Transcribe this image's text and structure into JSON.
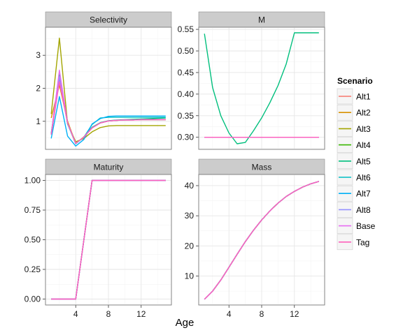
{
  "chart_data": {
    "type": "line",
    "xlabel": "Age",
    "x_ticks": [
      4,
      8,
      12
    ],
    "legend": {
      "title": "Scenario",
      "position": "right",
      "entries": [
        "Alt1",
        "Alt2",
        "Alt3",
        "Alt4",
        "Alt5",
        "Alt6",
        "Alt7",
        "Alt8",
        "Base",
        "Tag"
      ]
    },
    "colors": {
      "Alt1": "#f8766d",
      "Alt2": "#d89000",
      "Alt3": "#a3a500",
      "Alt4": "#39b600",
      "Alt5": "#00bf7d",
      "Alt6": "#00bfc4",
      "Alt7": "#00b0f6",
      "Alt8": "#9590ff",
      "Base": "#e76bf3",
      "Tag": "#ff62bc"
    },
    "x": [
      1,
      2,
      3,
      4,
      5,
      6,
      7,
      8,
      9,
      10,
      11,
      12,
      13,
      14,
      15
    ],
    "panels": [
      {
        "title": "Selectivity",
        "xlim": [
          0.3,
          15.7
        ],
        "ylim": [
          0.15,
          3.85
        ],
        "y_ticks": [
          1,
          2,
          3
        ],
        "y_tick_labels": [
          "1",
          "2",
          "3"
        ],
        "series": [
          {
            "name": "Alt1",
            "values": [
              0.6,
              2.25,
              0.95,
              0.33,
              0.52,
              0.8,
              0.95,
              1.01,
              1.03,
              1.04,
              1.04,
              1.05,
              1.05,
              1.05,
              1.05
            ]
          },
          {
            "name": "Alt2",
            "values": [
              1.1,
              2.1,
              1.0,
              0.33,
              0.53,
              0.8,
              0.95,
              1.01,
              1.03,
              1.04,
              1.05,
              1.05,
              1.05,
              1.05,
              1.05
            ]
          },
          {
            "name": "Alt3",
            "values": [
              1.22,
              3.52,
              0.92,
              0.38,
              0.48,
              0.68,
              0.81,
              0.86,
              0.87,
              0.87,
              0.87,
              0.87,
              0.87,
              0.87,
              0.87
            ]
          },
          {
            "name": "Alt4",
            "values": [
              0.6,
              2.45,
              0.95,
              0.33,
              0.52,
              0.8,
              0.95,
              1.01,
              1.03,
              1.04,
              1.04,
              1.05,
              1.05,
              1.05,
              1.05
            ]
          },
          {
            "name": "Alt5",
            "values": [
              0.6,
              2.45,
              0.95,
              0.33,
              0.52,
              0.82,
              0.96,
              1.02,
              1.04,
              1.05,
              1.06,
              1.07,
              1.08,
              1.09,
              1.1
            ]
          },
          {
            "name": "Alt6",
            "values": [
              0.65,
              2.3,
              0.92,
              0.32,
              0.52,
              0.9,
              1.1,
              1.12,
              1.12,
              1.12,
              1.12,
              1.12,
              1.12,
              1.12,
              1.12
            ]
          },
          {
            "name": "Alt7",
            "values": [
              0.48,
              1.75,
              0.55,
              0.25,
              0.45,
              0.92,
              1.08,
              1.15,
              1.16,
              1.16,
              1.16,
              1.16,
              1.16,
              1.16,
              1.16
            ]
          },
          {
            "name": "Alt8",
            "values": [
              0.6,
              2.35,
              0.95,
              0.33,
              0.52,
              0.8,
              0.95,
              1.01,
              1.03,
              1.04,
              1.04,
              1.05,
              1.05,
              1.05,
              1.05
            ]
          },
          {
            "name": "Base",
            "values": [
              0.6,
              2.55,
              0.95,
              0.33,
              0.52,
              0.8,
              0.95,
              1.01,
              1.03,
              1.04,
              1.04,
              1.05,
              1.05,
              1.05,
              1.05
            ]
          },
          {
            "name": "Tag",
            "values": [
              0.6,
              2.2,
              0.95,
              0.33,
              0.52,
              0.8,
              0.95,
              1.01,
              1.03,
              1.04,
              1.04,
              1.05,
              1.05,
              1.05,
              1.05
            ]
          }
        ]
      },
      {
        "title": "M",
        "xlim": [
          0.3,
          15.7
        ],
        "ylim": [
          0.272,
          0.555
        ],
        "y_ticks": [
          0.3,
          0.35,
          0.4,
          0.45,
          0.5,
          0.55
        ],
        "y_tick_labels": [
          "0.30",
          "0.35",
          "0.40",
          "0.45",
          "0.50",
          "0.55"
        ],
        "series": [
          {
            "name": "Alt1",
            "values": [
              0.3,
              0.3,
              0.3,
              0.3,
              0.3,
              0.3,
              0.3,
              0.3,
              0.3,
              0.3,
              0.3,
              0.3,
              0.3,
              0.3,
              0.3
            ]
          },
          {
            "name": "Alt2",
            "values": [
              0.3,
              0.3,
              0.3,
              0.3,
              0.3,
              0.3,
              0.3,
              0.3,
              0.3,
              0.3,
              0.3,
              0.3,
              0.3,
              0.3,
              0.3
            ]
          },
          {
            "name": "Alt3",
            "values": [
              0.3,
              0.3,
              0.3,
              0.3,
              0.3,
              0.3,
              0.3,
              0.3,
              0.3,
              0.3,
              0.3,
              0.3,
              0.3,
              0.3,
              0.3
            ]
          },
          {
            "name": "Alt4",
            "values": [
              0.3,
              0.3,
              0.3,
              0.3,
              0.3,
              0.3,
              0.3,
              0.3,
              0.3,
              0.3,
              0.3,
              0.3,
              0.3,
              0.3,
              0.3
            ]
          },
          {
            "name": "Alt5",
            "values": [
              0.54,
              0.415,
              0.35,
              0.31,
              0.285,
              0.288,
              0.315,
              0.345,
              0.38,
              0.42,
              0.47,
              0.542,
              0.542,
              0.542,
              0.542
            ]
          },
          {
            "name": "Alt6",
            "values": [
              0.3,
              0.3,
              0.3,
              0.3,
              0.3,
              0.3,
              0.3,
              0.3,
              0.3,
              0.3,
              0.3,
              0.3,
              0.3,
              0.3,
              0.3
            ]
          },
          {
            "name": "Alt7",
            "values": [
              0.3,
              0.3,
              0.3,
              0.3,
              0.3,
              0.3,
              0.3,
              0.3,
              0.3,
              0.3,
              0.3,
              0.3,
              0.3,
              0.3,
              0.3
            ]
          },
          {
            "name": "Alt8",
            "values": [
              0.3,
              0.3,
              0.3,
              0.3,
              0.3,
              0.3,
              0.3,
              0.3,
              0.3,
              0.3,
              0.3,
              0.3,
              0.3,
              0.3,
              0.3
            ]
          },
          {
            "name": "Base",
            "values": [
              0.3,
              0.3,
              0.3,
              0.3,
              0.3,
              0.3,
              0.3,
              0.3,
              0.3,
              0.3,
              0.3,
              0.3,
              0.3,
              0.3,
              0.3
            ]
          },
          {
            "name": "Tag",
            "values": [
              0.3,
              0.3,
              0.3,
              0.3,
              0.3,
              0.3,
              0.3,
              0.3,
              0.3,
              0.3,
              0.3,
              0.3,
              0.3,
              0.3,
              0.3
            ]
          }
        ]
      },
      {
        "title": "Maturity",
        "xlim": [
          0.3,
          15.7
        ],
        "ylim": [
          -0.05,
          1.05
        ],
        "y_ticks": [
          0,
          0.25,
          0.5,
          0.75,
          1.0
        ],
        "y_tick_labels": [
          "0.00",
          "0.25",
          "0.50",
          "0.75",
          "1.00"
        ],
        "series": [
          {
            "name": "Alt1",
            "values": [
              0,
              0,
              0,
              0,
              0.5,
              1,
              1,
              1,
              1,
              1,
              1,
              1,
              1,
              1,
              1
            ]
          },
          {
            "name": "Alt2",
            "values": [
              0,
              0,
              0,
              0,
              0.5,
              1,
              1,
              1,
              1,
              1,
              1,
              1,
              1,
              1,
              1
            ]
          },
          {
            "name": "Alt3",
            "values": [
              0,
              0,
              0,
              0,
              0.5,
              1,
              1,
              1,
              1,
              1,
              1,
              1,
              1,
              1,
              1
            ]
          },
          {
            "name": "Alt4",
            "values": [
              0,
              0,
              0,
              0,
              0.5,
              1,
              1,
              1,
              1,
              1,
              1,
              1,
              1,
              1,
              1
            ]
          },
          {
            "name": "Alt5",
            "values": [
              0,
              0,
              0,
              0,
              0.5,
              1,
              1,
              1,
              1,
              1,
              1,
              1,
              1,
              1,
              1
            ]
          },
          {
            "name": "Alt6",
            "values": [
              0,
              0,
              0,
              0,
              0.5,
              1,
              1,
              1,
              1,
              1,
              1,
              1,
              1,
              1,
              1
            ]
          },
          {
            "name": "Alt7",
            "values": [
              0,
              0,
              0,
              0,
              0.5,
              1,
              1,
              1,
              1,
              1,
              1,
              1,
              1,
              1,
              1
            ]
          },
          {
            "name": "Alt8",
            "values": [
              0,
              0,
              0,
              0,
              0.5,
              1,
              1,
              1,
              1,
              1,
              1,
              1,
              1,
              1,
              1
            ]
          },
          {
            "name": "Base",
            "values": [
              0,
              0,
              0,
              0,
              0.5,
              1,
              1,
              1,
              1,
              1,
              1,
              1,
              1,
              1,
              1
            ]
          },
          {
            "name": "Tag",
            "values": [
              0,
              0,
              0,
              0,
              0.5,
              1,
              1,
              1,
              1,
              1,
              1,
              1,
              1,
              1,
              1
            ]
          }
        ]
      },
      {
        "title": "Mass",
        "xlim": [
          0.3,
          15.7
        ],
        "ylim": [
          0.4,
          43.7
        ],
        "y_ticks": [
          10,
          20,
          30,
          40
        ],
        "y_tick_labels": [
          "10",
          "20",
          "30",
          "40"
        ],
        "series": [
          {
            "name": "Alt1",
            "values": [
              2.3,
              5.0,
              8.7,
              12.9,
              17.2,
              21.4,
              25.2,
              28.6,
              31.6,
              34.2,
              36.4,
              38.1,
              39.5,
              40.6,
              41.4
            ]
          },
          {
            "name": "Alt2",
            "values": [
              2.3,
              5.0,
              8.7,
              12.9,
              17.2,
              21.4,
              25.2,
              28.6,
              31.6,
              34.2,
              36.4,
              38.1,
              39.5,
              40.6,
              41.4
            ]
          },
          {
            "name": "Alt3",
            "values": [
              2.3,
              5.0,
              8.7,
              12.9,
              17.2,
              21.4,
              25.2,
              28.6,
              31.6,
              34.2,
              36.4,
              38.1,
              39.5,
              40.6,
              41.4
            ]
          },
          {
            "name": "Alt4",
            "values": [
              2.3,
              5.0,
              8.7,
              12.9,
              17.2,
              21.4,
              25.2,
              28.6,
              31.6,
              34.2,
              36.4,
              38.1,
              39.5,
              40.6,
              41.4
            ]
          },
          {
            "name": "Alt5",
            "values": [
              2.3,
              5.0,
              8.7,
              12.9,
              17.2,
              21.4,
              25.2,
              28.6,
              31.6,
              34.2,
              36.4,
              38.1,
              39.5,
              40.6,
              41.4
            ]
          },
          {
            "name": "Alt6",
            "values": [
              2.3,
              5.0,
              8.7,
              12.9,
              17.2,
              21.4,
              25.2,
              28.6,
              31.6,
              34.2,
              36.4,
              38.1,
              39.5,
              40.6,
              41.4
            ]
          },
          {
            "name": "Alt7",
            "values": [
              2.3,
              5.0,
              8.7,
              12.9,
              17.2,
              21.4,
              25.2,
              28.6,
              31.6,
              34.2,
              36.4,
              38.1,
              39.5,
              40.6,
              41.4
            ]
          },
          {
            "name": "Alt8",
            "values": [
              2.3,
              5.0,
              8.7,
              12.9,
              17.2,
              21.4,
              25.2,
              28.6,
              31.6,
              34.2,
              36.4,
              38.1,
              39.5,
              40.6,
              41.4
            ]
          },
          {
            "name": "Base",
            "values": [
              2.3,
              5.0,
              8.7,
              12.9,
              17.2,
              21.4,
              25.2,
              28.6,
              31.6,
              34.2,
              36.4,
              38.1,
              39.5,
              40.6,
              41.4
            ]
          },
          {
            "name": "Tag",
            "values": [
              2.3,
              5.0,
              8.7,
              12.9,
              17.2,
              21.4,
              25.2,
              28.6,
              31.6,
              34.2,
              36.4,
              38.1,
              39.5,
              40.6,
              41.4
            ]
          }
        ]
      }
    ]
  }
}
